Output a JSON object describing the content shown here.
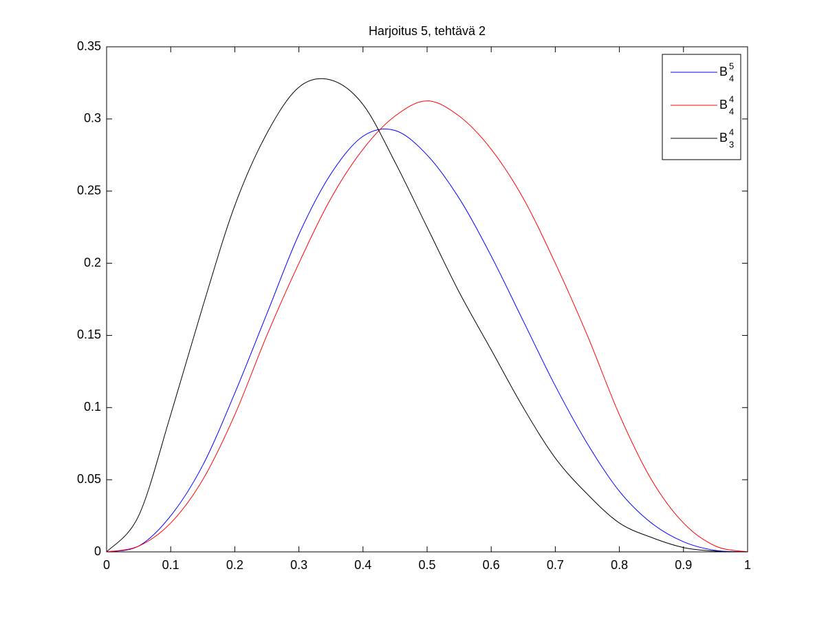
{
  "chart_data": {
    "type": "line",
    "title": "Harjoitus 5, tehtävä 2",
    "x": [
      0,
      0.05,
      0.1,
      0.15,
      0.2,
      0.25,
      0.3,
      0.35,
      0.4,
      0.45,
      0.5,
      0.55,
      0.6,
      0.65,
      0.7,
      0.75,
      0.8,
      0.85,
      0.9,
      0.95,
      1
    ],
    "series": [
      {
        "name": "B",
        "subscript": "4",
        "superscript": "5",
        "color": "#0000ff",
        "values": [
          0,
          0.004,
          0.025,
          0.06,
          0.11,
          0.165,
          0.22,
          0.262,
          0.288,
          0.292,
          0.275,
          0.245,
          0.205,
          0.16,
          0.115,
          0.075,
          0.042,
          0.02,
          0.007,
          0.001,
          0
        ]
      },
      {
        "name": "B",
        "subscript": "4",
        "superscript": "4",
        "color": "#ff0000",
        "values": [
          0,
          0.004,
          0.02,
          0.05,
          0.095,
          0.15,
          0.2,
          0.245,
          0.279,
          0.302,
          0.3125,
          0.302,
          0.279,
          0.245,
          0.2,
          0.15,
          0.095,
          0.05,
          0.02,
          0.004,
          0
        ]
      },
      {
        "name": "B",
        "subscript": "3",
        "superscript": "4",
        "color": "#000000",
        "values": [
          0,
          0.025,
          0.095,
          0.17,
          0.24,
          0.29,
          0.322,
          0.327,
          0.31,
          0.27,
          0.225,
          0.18,
          0.14,
          0.1,
          0.065,
          0.04,
          0.02,
          0.01,
          0.003,
          0.0005,
          0
        ]
      }
    ],
    "xlim": [
      0,
      1
    ],
    "xticks": [
      0,
      0.1,
      0.2,
      0.3,
      0.4,
      0.5,
      0.6,
      0.7,
      0.8,
      0.9,
      1
    ],
    "ylim": [
      0,
      0.35
    ],
    "yticks": [
      0,
      0.05,
      0.1,
      0.15,
      0.2,
      0.25,
      0.3,
      0.35
    ],
    "grid": false,
    "legend": "top-right"
  }
}
